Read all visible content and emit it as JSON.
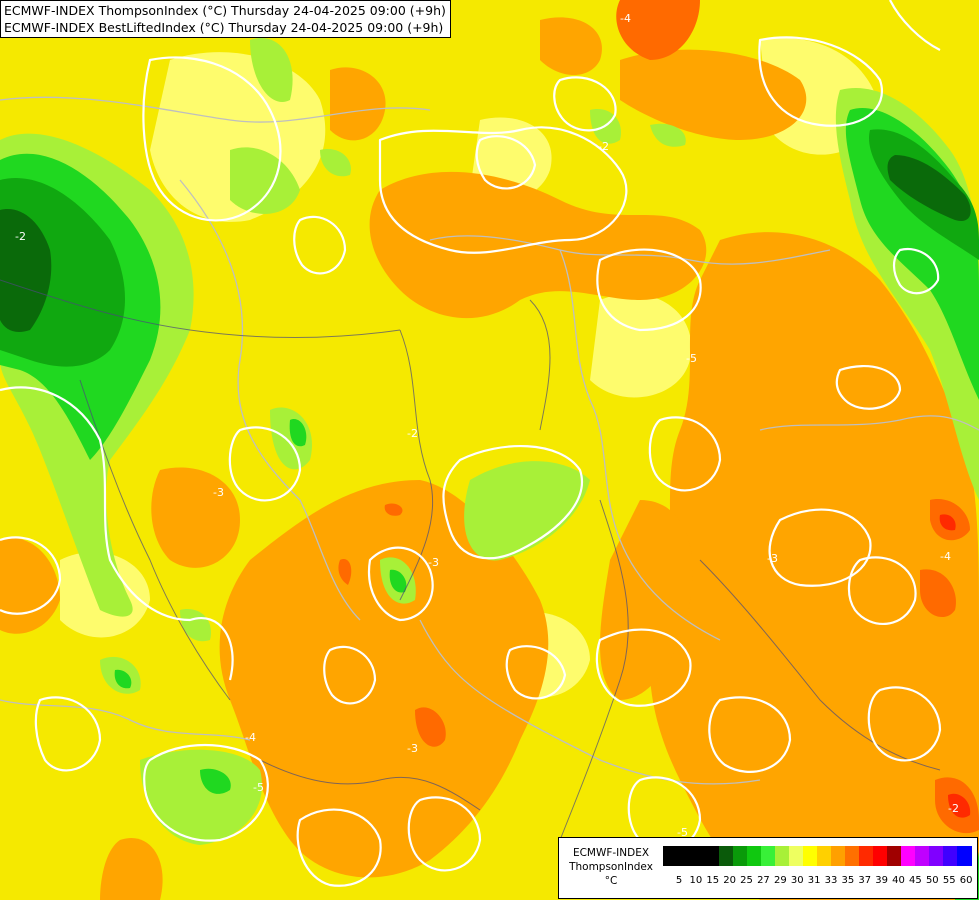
{
  "header": {
    "line1": "ECMWF-INDEX ThompsonIndex (°C) Thursday 24-04-2025 09:00 (+9h)",
    "line2": "ECMWF-INDEX BestLiftedIndex (°C) Thursday 24-04-2025 09:00 (+9h)"
  },
  "contour_labels": [
    "-2",
    "-2",
    "-2",
    "-3",
    "-3",
    "-3",
    "-3",
    "-4",
    "-4",
    "-4",
    "-5",
    "-5",
    "-5",
    "-2"
  ],
  "legend": {
    "line1": "ECMWF-INDEX",
    "line2": "ThompsonIndex",
    "line3": "°C",
    "colors": [
      "#000000",
      "#000000",
      "#000000",
      "#000000",
      "#0a5a0a",
      "#0a9a0a",
      "#10c810",
      "#38f038",
      "#a8f038",
      "#eeff60",
      "#ffff00",
      "#ffd000",
      "#ffa000",
      "#ff7000",
      "#ff2a00",
      "#ff0000",
      "#a00000",
      "#ff00ff",
      "#c000ff",
      "#8000ff",
      "#4000ff",
      "#0000ff"
    ],
    "labels": [
      "5",
      "10",
      "15",
      "20",
      "25",
      "27",
      "29",
      "30",
      "31",
      "33",
      "35",
      "37",
      "39",
      "40",
      "45",
      "50",
      "55",
      "60"
    ]
  }
}
